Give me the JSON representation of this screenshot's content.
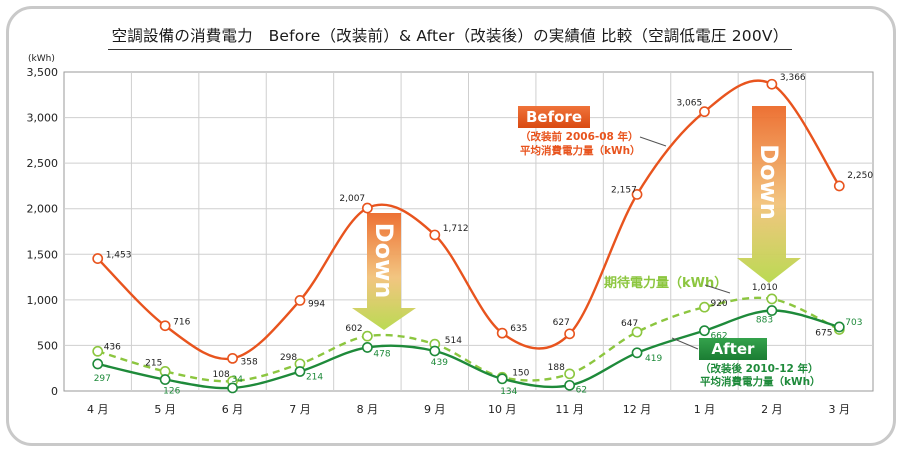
{
  "title": "空調設備の消費電力　Before（改装前）& After（改装後）の実績値 比較（空調低電圧 200V）",
  "colors": {
    "before": "#e8541e",
    "after": "#1e8a3a",
    "expected": "#8cc63f",
    "grid": "#cfcfcf"
  },
  "chart_data": {
    "type": "line",
    "ylabel": "(kWh)",
    "ylim": [
      0,
      3500
    ],
    "yticks": [
      "0",
      "500",
      "1,000",
      "1,500",
      "2,000",
      "2,500",
      "3,000",
      "3,500"
    ],
    "categories": [
      "4 月",
      "5 月",
      "6 月",
      "7 月",
      "8 月",
      "9 月",
      "10 月",
      "11 月",
      "12 月",
      "1 月",
      "2 月",
      "3 月"
    ],
    "grid": true,
    "series": [
      {
        "key": "before",
        "values": [
          1453,
          716,
          358,
          994,
          2007,
          1712,
          635,
          627,
          2157,
          3065,
          3366,
          2250
        ],
        "labels": [
          "1,453",
          "716",
          "358",
          "994",
          "2,007",
          "1,712",
          "635",
          "627",
          "2,157",
          "3,065",
          "3,366",
          "2,250"
        ]
      },
      {
        "key": "expected",
        "values": [
          436,
          215,
          108,
          298,
          602,
          514,
          150,
          188,
          647,
          920,
          1010,
          675
        ],
        "labels": [
          "436",
          "215",
          "108",
          "298",
          "602",
          "514",
          "150",
          "188",
          "647",
          "920",
          "1,010",
          "675"
        ]
      },
      {
        "key": "after",
        "values": [
          297,
          126,
          34,
          214,
          478,
          439,
          134,
          62,
          419,
          662,
          883,
          703
        ],
        "labels": [
          "297",
          "126",
          "34",
          "214",
          "478",
          "439",
          "134",
          "62",
          "419",
          "662",
          "883",
          "703"
        ]
      }
    ],
    "annotations": {
      "before_box": "Before",
      "before_sub1": "（改装前 2006-08 年）",
      "before_sub2": "平均消費電力量（kWh）",
      "expected_label": "期待電力量（kWh）",
      "after_box": "After",
      "after_sub1": "（改装後 2010-12 年）",
      "after_sub2": "平均消費電力量（kWh）",
      "down_text": "Down"
    }
  }
}
